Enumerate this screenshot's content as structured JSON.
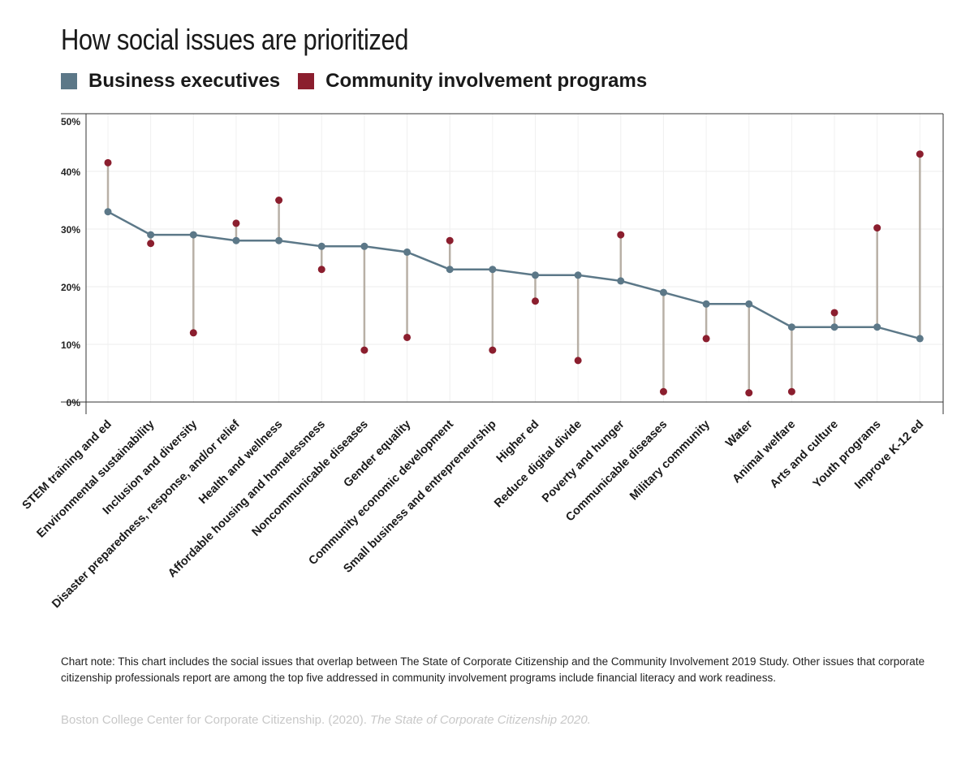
{
  "chart_data": {
    "type": "dumbbell",
    "title": "How social issues are prioritized",
    "categories": [
      "STEM training and ed",
      "Environmental sustainability",
      "Inclusion and diversity",
      "Disaster preparedness, response, and/or relief",
      "Health and wellness",
      "Affordable housing and homelessness",
      "Noncommunicable diseases",
      "Gender equality",
      "Community economic development",
      "Small business and entrepreneurship",
      "Higher ed",
      "Reduce digital divide",
      "Poverty and hunger",
      "Communicable diseases",
      "Military community",
      "Water",
      "Animal welfare",
      "Arts and culture",
      "Youth programs",
      "Improve K-12 ed"
    ],
    "series": [
      {
        "name": "Business executives",
        "color": "#5c7888",
        "values": [
          33,
          29,
          29,
          28,
          28,
          27,
          27,
          26,
          23,
          23,
          22,
          22,
          21,
          19,
          17,
          17,
          13,
          13,
          13,
          11
        ]
      },
      {
        "name": "Community involvement programs",
        "color": "#8b1e2e",
        "values": [
          41.5,
          27.5,
          12,
          31,
          35,
          23,
          9,
          11.2,
          28,
          9,
          17.5,
          7.2,
          29,
          1.8,
          11,
          1.6,
          1.8,
          15.5,
          30.2,
          43
        ]
      }
    ],
    "connector_color": "#b8b0a6",
    "ylim": [
      0,
      50
    ],
    "yticks": [
      {
        "value": 0,
        "label": "0%"
      },
      {
        "value": 10,
        "label": "10%"
      },
      {
        "value": 20,
        "label": "20%"
      },
      {
        "value": 30,
        "label": "30%"
      },
      {
        "value": 40,
        "label": "40%"
      },
      {
        "value": 50,
        "label": "50%"
      }
    ],
    "xlabel": "",
    "ylabel": "",
    "grid": true,
    "legend": "top-left"
  },
  "note": "Chart note: This chart includes the social issues that overlap between The State of Corporate Citizenship and the Community Involvement 2019 Study. Other issues that corporate citizenship professionals report are among the top five addressed in community involvement programs include financial literacy and work readiness.",
  "source": {
    "prefix": "Boston College Center for Corporate Citizenship. (2020). ",
    "italic": "The State of Corporate Citizenship 2020."
  }
}
